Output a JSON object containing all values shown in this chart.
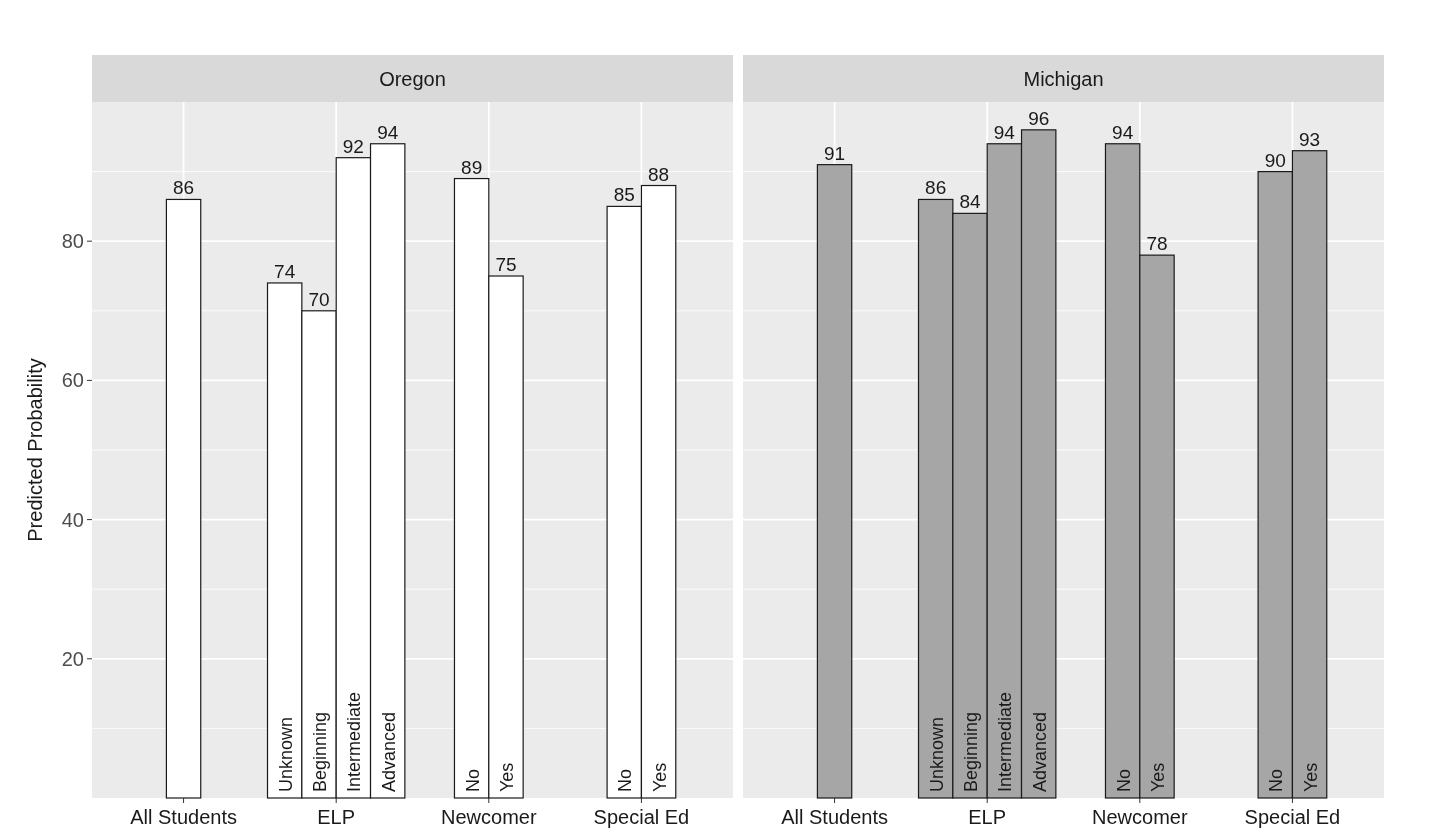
{
  "chart_data": [
    {
      "type": "bar",
      "title": "Oregon",
      "ylabel": "Predicted Probability",
      "categories": [
        "All Students",
        "ELP",
        "Newcomer",
        "Special Ed"
      ],
      "series": [
        {
          "color": "#ffffff",
          "values": [
            86,
            74,
            89,
            85
          ]
        },
        {
          "color": "#ffffff",
          "values": [
            null,
            70,
            75,
            88
          ]
        },
        {
          "color": "#ffffff",
          "values": [
            null,
            92,
            null,
            null
          ]
        },
        {
          "color": "#ffffff",
          "values": [
            null,
            94,
            null,
            null
          ]
        }
      ],
      "annotations": [
        {
          "text": "Unknown",
          "x": "ELP",
          "y": 0
        },
        {
          "text": "Beginning",
          "x": "ELP",
          "y": 0
        },
        {
          "text": "Intermediate",
          "x": "ELP",
          "y": 0
        },
        {
          "text": "Advanced",
          "x": "ELP",
          "y": 0
        },
        {
          "text": "No",
          "x": "Newcomer",
          "y": 0
        },
        {
          "text": "Yes",
          "x": "Newcomer",
          "y": 0
        },
        {
          "text": "No",
          "x": "Special Ed",
          "y": 0
        },
        {
          "text": "Yes",
          "x": "Special Ed",
          "y": 0
        }
      ],
      "ylim": [
        0,
        100
      ],
      "yticks": [
        {
          "value": 10,
          "label": null
        },
        20,
        {
          "value": 30,
          "label": null
        },
        40,
        {
          "value": 50,
          "label": null
        },
        60,
        {
          "value": 70,
          "label": null
        },
        80,
        {
          "value": 90,
          "label": null
        }
      ],
      "grid": true,
      "data_labels": true
    },
    {
      "type": "bar",
      "title": "Michigan",
      "categories": [
        "All Students",
        "ELP",
        "Newcomer",
        "Special Ed"
      ],
      "series": [
        {
          "color": "#a6a6a6",
          "values": [
            91,
            86,
            94,
            90
          ]
        },
        {
          "color": "#a6a6a6",
          "values": [
            null,
            84,
            78,
            93
          ]
        },
        {
          "color": "#a6a6a6",
          "values": [
            null,
            94,
            null,
            null
          ]
        },
        {
          "color": "#a6a6a6",
          "values": [
            null,
            96,
            null,
            null
          ]
        }
      ],
      "annotations": [
        {
          "text": "Unknown",
          "x": "ELP",
          "y": 0
        },
        {
          "text": "Beginning",
          "x": "ELP",
          "y": 0
        },
        {
          "text": "Intermediate",
          "x": "ELP",
          "y": 0
        },
        {
          "text": "Advanced",
          "x": "ELP",
          "y": 0
        },
        {
          "text": "No",
          "x": "Newcomer",
          "y": 0
        },
        {
          "text": "Yes",
          "x": "Newcomer",
          "y": 0
        },
        {
          "text": "No",
          "x": "Special Ed",
          "y": 0
        },
        {
          "text": "Yes",
          "x": "Special Ed",
          "y": 0
        }
      ],
      "ylim": [
        0,
        100
      ],
      "yticks": [
        {
          "value": 10,
          "label": null
        },
        20,
        {
          "value": 30,
          "label": null
        },
        40,
        {
          "value": 50,
          "label": null
        },
        60,
        {
          "value": 70,
          "label": null
        },
        80,
        {
          "value": 90,
          "label": null
        }
      ],
      "grid": true,
      "data_labels": true,
      "tick_labels": "x"
    }
  ]
}
